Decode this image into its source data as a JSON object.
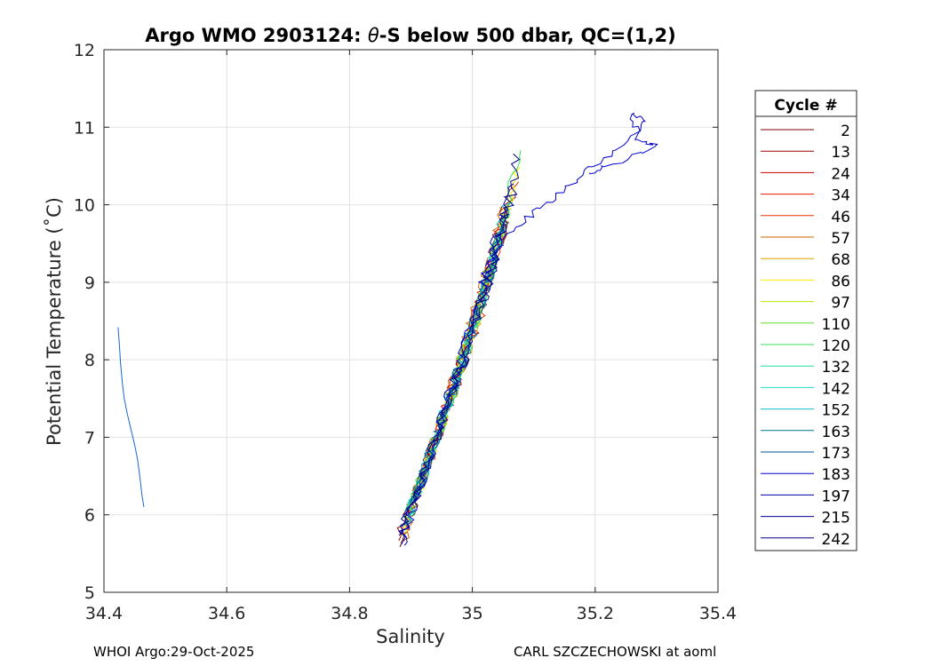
{
  "chart_data": {
    "type": "line",
    "title_prefix": "Argo WMO 2903124: ",
    "title_theta": "θ",
    "title_suffix": "-S below 500 dbar,  QC=(1,2)",
    "xlabel": "Salinity",
    "ylabel": "Potential Temperature (˚C)",
    "xlim": [
      34.4,
      35.4
    ],
    "ylim": [
      5,
      12
    ],
    "xticks": [
      34.4,
      34.6,
      34.8,
      35,
      35.2,
      35.4
    ],
    "xtick_labels": [
      "34.4",
      "34.6",
      "34.8",
      "35",
      "35.2",
      "35.4"
    ],
    "yticks": [
      5,
      6,
      7,
      8,
      9,
      10,
      11,
      12
    ],
    "ytick_labels": [
      "5",
      "6",
      "7",
      "8",
      "9",
      "10",
      "11",
      "12"
    ],
    "grid": true,
    "legend_title": "Cycle #",
    "legend_position": "right",
    "legend": [
      {
        "label": "2",
        "color": "#800000"
      },
      {
        "label": "13",
        "color": "#990000"
      },
      {
        "label": "24",
        "color": "#cc0000"
      },
      {
        "label": "34",
        "color": "#e61a00"
      },
      {
        "label": "46",
        "color": "#e63300"
      },
      {
        "label": "57",
        "color": "#cc6600"
      },
      {
        "label": "68",
        "color": "#d9a300"
      },
      {
        "label": "86",
        "color": "#ffee00"
      },
      {
        "label": "97",
        "color": "#b3e600"
      },
      {
        "label": "110",
        "color": "#66dd33"
      },
      {
        "label": "120",
        "color": "#33dd55"
      },
      {
        "label": "132",
        "color": "#22dd99"
      },
      {
        "label": "142",
        "color": "#22ddcc"
      },
      {
        "label": "152",
        "color": "#11bbcc"
      },
      {
        "label": "163",
        "color": "#007788"
      },
      {
        "label": "173",
        "color": "#005599"
      },
      {
        "label": "183",
        "color": "#0000cc"
      },
      {
        "label": "197",
        "color": "#0000aa"
      },
      {
        "label": "215",
        "color": "#000099"
      },
      {
        "label": "242",
        "color": "#000088"
      }
    ],
    "band": {
      "lower_edge": [
        [
          34.868,
          5.5
        ],
        [
          34.92,
          6.5
        ],
        [
          34.965,
          7.5
        ],
        [
          35.01,
          8.5
        ],
        [
          35.045,
          9.5
        ],
        [
          35.07,
          10.3
        ]
      ],
      "upper_edge": [
        [
          34.89,
          5.8
        ],
        [
          34.94,
          7.0
        ],
        [
          34.98,
          8.0
        ],
        [
          35.03,
          9.3
        ],
        [
          35.06,
          10.3
        ],
        [
          35.1,
          10.7
        ]
      ],
      "series_count": 20,
      "points_per_profile": 70
    },
    "outlier_profile": {
      "color": "#1a66cc",
      "points": [
        [
          34.423,
          8.42
        ],
        [
          34.425,
          8.2
        ],
        [
          34.427,
          7.95
        ],
        [
          34.43,
          7.7
        ],
        [
          34.433,
          7.5
        ],
        [
          34.438,
          7.3
        ],
        [
          34.444,
          7.1
        ],
        [
          34.45,
          6.9
        ],
        [
          34.455,
          6.7
        ],
        [
          34.459,
          6.45
        ],
        [
          34.462,
          6.25
        ],
        [
          34.465,
          6.1
        ]
      ]
    },
    "wander_profile": {
      "color": "#0000cc",
      "points": [
        [
          35.02,
          9.2
        ],
        [
          35.06,
          9.6
        ],
        [
          35.1,
          9.9
        ],
        [
          35.15,
          10.2
        ],
        [
          35.2,
          10.5
        ],
        [
          35.25,
          10.8
        ],
        [
          35.28,
          11.05
        ],
        [
          35.26,
          11.2
        ],
        [
          35.27,
          10.85
        ],
        [
          35.3,
          10.75
        ],
        [
          35.22,
          10.5
        ],
        [
          35.18,
          10.4
        ]
      ]
    }
  },
  "footer": {
    "left": "WHOI Argo:29-Oct-2025",
    "right": "CARL SZCZECHOWSKI at aoml"
  }
}
